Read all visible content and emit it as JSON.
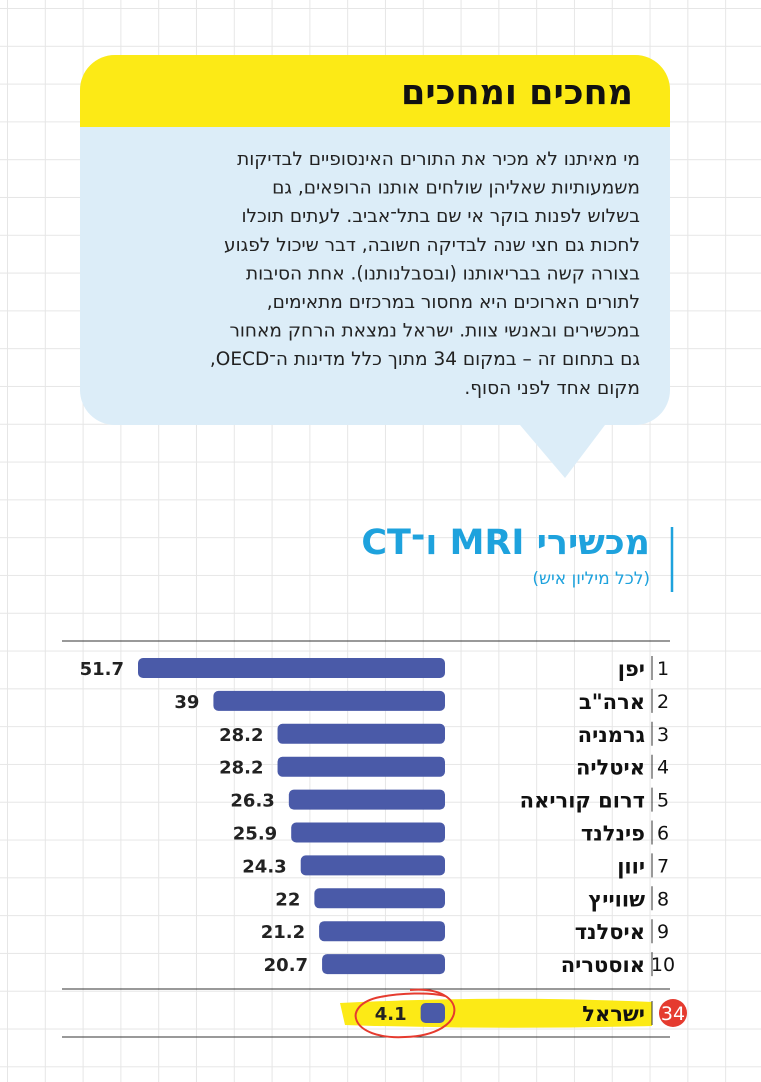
{
  "bubble": {
    "title": "מחכים ומחכים",
    "lines": [
      "מי מאיתנו לא מכיר את התורים האינסופיים לבדיקות",
      "משמעותיות שאליהן שולחים אותנו הרופאים, גם",
      "בשלוש לפנות בוקר אי שם בתל־אביב. לעתים תוכלו",
      "לחכות גם חצי שנה לבדיקה חשובה, דבר שיכול לפגוע",
      "בצורה קשה בבריאותנו (ובסבלנותנו). אחת הסיבות",
      "לתורים הארוכים היא מחסור במרכזים מתאימים,",
      "במכשירים ובאנשי צוות. ישראל נמצאת הרחק מאחור",
      "גם בתחום זה – במקום 34 מתוך כלל מדינות ה־OECD,",
      "מקום אחד לפני הסוף."
    ]
  },
  "chart_data": {
    "type": "bar",
    "title": "מכשירי MRI ו־CT",
    "subtitle": "(לכל מיליון איש)",
    "ranks": [
      1,
      2,
      3,
      4,
      5,
      6,
      7,
      8,
      9,
      10
    ],
    "categories": [
      "יפן",
      "ארה\"ב",
      "גרמניה",
      "איטליה",
      "דרום קוריאה",
      "פינלנד",
      "יוון",
      "שווייץ",
      "איסלנד",
      "אוסטריה"
    ],
    "values": [
      51.7,
      39,
      28.2,
      28.2,
      26.3,
      25.9,
      24.3,
      22,
      21.2,
      20.7
    ],
    "color": "#4a5aa8",
    "highlight": {
      "rank": 34,
      "category": "ישראל",
      "value": 4.1,
      "color": "#e53b2f"
    }
  }
}
